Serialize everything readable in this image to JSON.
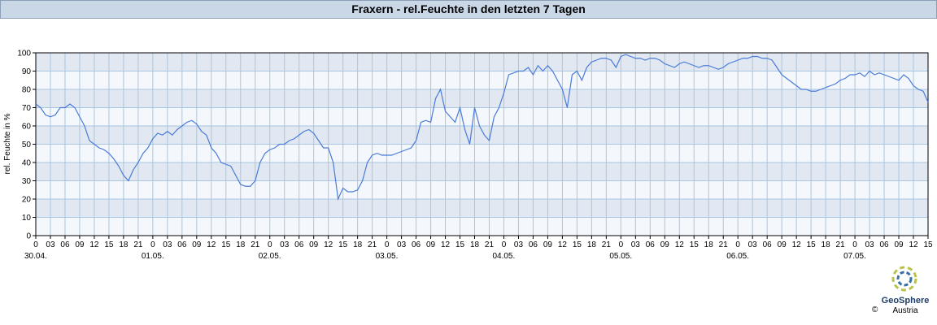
{
  "chart_data": {
    "type": "line",
    "title": "Fraxern - rel.Feuchte in den letzten 7 Tagen",
    "y_label": "rel. Feuchte in %",
    "ylim": [
      0,
      100
    ],
    "yticks": [
      0,
      10,
      20,
      30,
      40,
      50,
      60,
      70,
      80,
      90,
      100
    ],
    "xlim": [
      0,
      183
    ],
    "xticks": [
      0,
      {
        "value": 3,
        "label": "03"
      },
      {
        "value": 6,
        "label": "06"
      },
      {
        "value": 9,
        "label": "09"
      },
      12,
      15,
      18,
      21,
      {
        "value": 24,
        "label": "0"
      },
      {
        "value": 27,
        "label": "03"
      },
      {
        "value": 30,
        "label": "06"
      },
      {
        "value": 33,
        "label": "09"
      },
      {
        "value": 36,
        "label": "12"
      },
      {
        "value": 39,
        "label": "15"
      },
      {
        "value": 42,
        "label": "18"
      },
      {
        "value": 45,
        "label": "21"
      },
      {
        "value": 48,
        "label": "0"
      },
      {
        "value": 51,
        "label": "03"
      },
      {
        "value": 54,
        "label": "06"
      },
      {
        "value": 57,
        "label": "09"
      },
      {
        "value": 60,
        "label": "12"
      },
      {
        "value": 63,
        "label": "15"
      },
      {
        "value": 66,
        "label": "18"
      },
      {
        "value": 69,
        "label": "21"
      },
      {
        "value": 72,
        "label": "0"
      },
      {
        "value": 75,
        "label": "03"
      },
      {
        "value": 78,
        "label": "06"
      },
      {
        "value": 81,
        "label": "09"
      },
      {
        "value": 84,
        "label": "12"
      },
      {
        "value": 87,
        "label": "15"
      },
      {
        "value": 90,
        "label": "18"
      },
      {
        "value": 93,
        "label": "21"
      },
      {
        "value": 96,
        "label": "0"
      },
      {
        "value": 99,
        "label": "03"
      },
      {
        "value": 102,
        "label": "06"
      },
      {
        "value": 105,
        "label": "09"
      },
      {
        "value": 108,
        "label": "12"
      },
      {
        "value": 111,
        "label": "15"
      },
      {
        "value": 114,
        "label": "18"
      },
      {
        "value": 117,
        "label": "21"
      },
      {
        "value": 120,
        "label": "0"
      },
      {
        "value": 123,
        "label": "03"
      },
      {
        "value": 126,
        "label": "06"
      },
      {
        "value": 129,
        "label": "09"
      },
      {
        "value": 132,
        "label": "12"
      },
      {
        "value": 135,
        "label": "15"
      },
      {
        "value": 138,
        "label": "18"
      },
      {
        "value": 141,
        "label": "21"
      },
      {
        "value": 144,
        "label": "0"
      },
      {
        "value": 147,
        "label": "03"
      },
      {
        "value": 150,
        "label": "06"
      },
      {
        "value": 153,
        "label": "09"
      },
      {
        "value": 156,
        "label": "12"
      },
      {
        "value": 159,
        "label": "15"
      },
      {
        "value": 162,
        "label": "18"
      },
      {
        "value": 165,
        "label": "21"
      },
      {
        "value": 168,
        "label": "0"
      },
      {
        "value": 171,
        "label": "03"
      },
      {
        "value": 174,
        "label": "06"
      },
      {
        "value": 177,
        "label": "09"
      },
      {
        "value": 180,
        "label": "12"
      },
      {
        "value": 183,
        "label": "15"
      }
    ],
    "date_labels": [
      {
        "value": 0,
        "label": "30.04."
      },
      {
        "value": 24,
        "label": "01.05."
      },
      {
        "value": 48,
        "label": "02.05."
      },
      {
        "value": 72,
        "label": "03.05."
      },
      {
        "value": 96,
        "label": "04.05."
      },
      {
        "value": 120,
        "label": "05.05."
      },
      {
        "value": 144,
        "label": "06.05."
      },
      {
        "value": 168,
        "label": "07.05."
      }
    ],
    "grid": true,
    "x": [
      0,
      1,
      2,
      3,
      4,
      5,
      6,
      7,
      8,
      9,
      10,
      11,
      12,
      13,
      14,
      15,
      16,
      17,
      18,
      19,
      20,
      21,
      22,
      23,
      24,
      25,
      26,
      27,
      28,
      29,
      30,
      31,
      32,
      33,
      34,
      35,
      36,
      37,
      38,
      39,
      40,
      41,
      42,
      43,
      44,
      45,
      46,
      47,
      48,
      49,
      50,
      51,
      52,
      53,
      54,
      55,
      56,
      57,
      58,
      59,
      60,
      61,
      62,
      63,
      64,
      65,
      66,
      67,
      68,
      69,
      70,
      71,
      72,
      73,
      74,
      75,
      76,
      77,
      78,
      79,
      80,
      81,
      82,
      83,
      84,
      85,
      86,
      87,
      88,
      89,
      90,
      91,
      92,
      93,
      94,
      95,
      96,
      97,
      98,
      99,
      100,
      101,
      102,
      103,
      104,
      105,
      106,
      107,
      108,
      109,
      110,
      111,
      112,
      113,
      114,
      115,
      116,
      117,
      118,
      119,
      120,
      121,
      122,
      123,
      124,
      125,
      126,
      127,
      128,
      129,
      130,
      131,
      132,
      133,
      134,
      135,
      136,
      137,
      138,
      139,
      140,
      141,
      142,
      143,
      144,
      145,
      146,
      147,
      148,
      149,
      150,
      151,
      152,
      153,
      154,
      155,
      156,
      157,
      158,
      159,
      160,
      161,
      162,
      163,
      164,
      165,
      166,
      167,
      168,
      169,
      170,
      171,
      172,
      173,
      174,
      175,
      176,
      177,
      178,
      179,
      180,
      181,
      182,
      183
    ],
    "series": [
      {
        "color": "#4a7bd8",
        "values": [
          72,
          70,
          66,
          65,
          66,
          70,
          70,
          72,
          70,
          65,
          60,
          52,
          50,
          48,
          47,
          45,
          42,
          38,
          33,
          30,
          36,
          40,
          45,
          48,
          53,
          56,
          55,
          57,
          55,
          58,
          60,
          62,
          63,
          61,
          57,
          55,
          48,
          45,
          40,
          39,
          38,
          33,
          28,
          27,
          27,
          30,
          40,
          45,
          47,
          48,
          50,
          50,
          52,
          53,
          55,
          57,
          58,
          56,
          52,
          48,
          48,
          40,
          20,
          26,
          24,
          24,
          25,
          30,
          40,
          44,
          45,
          44,
          44,
          44,
          45,
          46,
          47,
          48,
          52,
          62,
          63,
          62,
          75,
          80,
          68,
          65,
          62,
          70,
          58,
          50,
          70,
          60,
          55,
          52,
          65,
          70,
          78,
          88,
          89,
          90,
          90,
          92,
          88,
          93,
          90,
          93,
          90,
          85,
          80,
          70,
          88,
          90,
          85,
          92,
          95,
          96,
          97,
          97,
          96,
          92,
          98,
          99,
          98,
          97,
          97,
          96,
          97,
          97,
          96,
          94,
          93,
          92,
          94,
          95,
          94,
          93,
          92,
          93,
          93,
          92,
          91,
          92,
          94,
          95,
          96,
          97,
          97,
          98,
          98,
          97,
          97,
          96,
          92,
          88,
          86,
          84,
          82,
          80,
          80,
          79,
          79,
          80,
          81,
          82,
          83,
          85,
          86,
          88,
          88,
          89,
          87,
          90,
          88,
          89,
          88,
          87,
          86,
          85,
          88,
          86,
          82,
          80,
          79,
          73
        ]
      }
    ]
  },
  "logo": {
    "name": "GeoSphere",
    "sub": "Austria",
    "copyright": "©"
  }
}
